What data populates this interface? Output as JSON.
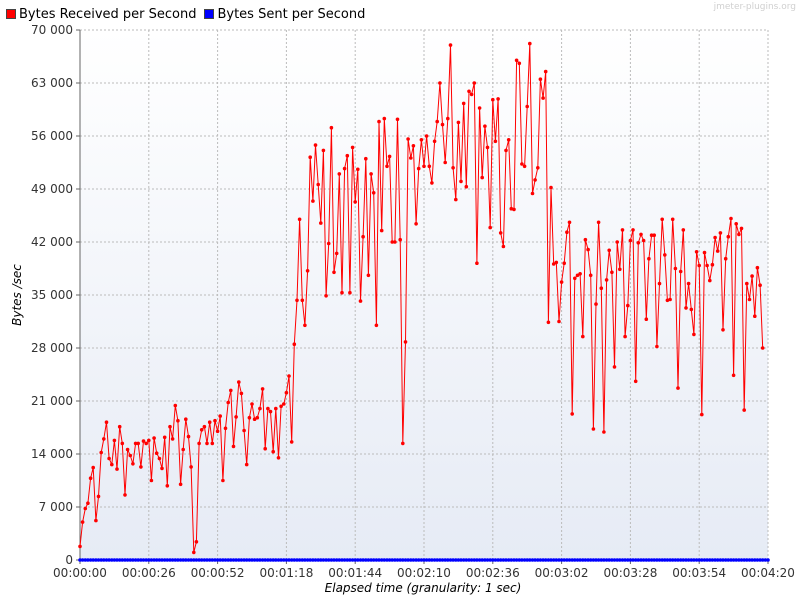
{
  "chart_data": {
    "type": "line",
    "title": "",
    "xlabel": "Elapsed time (granularity: 1 sec)",
    "ylabel": "Bytes /sec",
    "ylim": [
      0,
      70000
    ],
    "xlim": [
      "00:00:00",
      "00:04:20"
    ],
    "x_ticks": [
      "00:00:00",
      "00:00:26",
      "00:00:52",
      "00:01:18",
      "00:01:44",
      "00:02:10",
      "00:02:36",
      "00:03:02",
      "00:03:28",
      "00:03:54",
      "00:04:20"
    ],
    "y_ticks": [
      "0",
      "7 000",
      "14 000",
      "21 000",
      "28 000",
      "35 000",
      "42 000",
      "49 000",
      "56 000",
      "63 000",
      "70 000"
    ],
    "grid": true,
    "legend_position": "top-left",
    "series": [
      {
        "name": "Bytes Received per Second",
        "color": "#ff0000",
        "x_start": "00:00:00",
        "x_step_seconds": 1,
        "values": [
          1800,
          5000,
          6800,
          7500,
          10800,
          12200,
          5200,
          8400,
          14200,
          16000,
          18200,
          13400,
          12600,
          15800,
          12000,
          17600,
          15400,
          8600,
          14600,
          13800,
          12700,
          15400,
          15400,
          12300,
          15700,
          15400,
          15800,
          10500,
          16100,
          14100,
          13400,
          12100,
          16200,
          9800,
          17600,
          16000,
          20400,
          18400,
          10000,
          14600,
          18600,
          16300,
          12300,
          1000,
          2400,
          15400,
          17200,
          17600,
          15400,
          18200,
          15400,
          18400,
          17000,
          19000,
          10500,
          17400,
          20800,
          22400,
          15000,
          18900,
          23500,
          22000,
          17100,
          12600,
          18800,
          20600,
          18600,
          18800,
          20000,
          22600,
          14700,
          20000,
          19600,
          14300,
          20000,
          13500,
          20300,
          20600,
          22100,
          24300,
          15600,
          28500,
          34300,
          45000,
          34300,
          31000,
          38200,
          53200,
          47400,
          54800,
          49600,
          44500,
          54100,
          34900,
          41800,
          57100,
          38000,
          40500,
          51000,
          35300,
          51700,
          53400,
          35300,
          54500,
          47300,
          51600,
          34200,
          42700,
          53000,
          37600,
          51000,
          48500,
          31000,
          57900,
          43500,
          58300,
          52000,
          53300,
          42000,
          42000,
          58200,
          42300,
          15400,
          28800,
          55600,
          53100,
          54700,
          44400,
          51700,
          55500,
          52000,
          56000,
          52000,
          49800,
          55300,
          57900,
          63000,
          57500,
          52500,
          58300,
          68000,
          51800,
          47600,
          57800,
          50000,
          60300,
          49300,
          61900,
          61500,
          63000,
          39200,
          59700,
          50500,
          57300,
          54500,
          43900,
          60800,
          55300,
          60900,
          43200,
          41400,
          54100,
          55500,
          46400,
          46300,
          66000,
          65600,
          52300,
          52000,
          59900,
          68200,
          48400,
          50200,
          51800,
          63500,
          61000,
          64500,
          31400,
          49200,
          39100,
          39300,
          31500,
          36700,
          39200,
          43300,
          44600,
          19300,
          37200,
          37600,
          37800,
          29500,
          42300,
          41000,
          37600,
          17300,
          33800,
          44600,
          35900,
          16900,
          37000,
          40900,
          38000,
          25500,
          42000,
          38400,
          43600,
          29500,
          33600,
          42200,
          43600,
          23600,
          41900,
          43000,
          42200,
          31800,
          39800,
          42900,
          42900,
          28200,
          36500,
          45000,
          40300,
          34300,
          34400,
          45000,
          38500,
          22700,
          38100,
          43600,
          33300,
          36500,
          33100,
          29800,
          40700,
          38900,
          19200,
          40600,
          38900,
          36900,
          39000,
          42600,
          40800,
          43200,
          30400,
          39800,
          42700,
          45100,
          24400,
          44400,
          43000,
          43800,
          19800,
          36500,
          34400,
          37500,
          32200,
          38600,
          36300,
          28000
        ]
      },
      {
        "name": "Bytes Sent per Second",
        "color": "#0000ff",
        "x_start": "00:00:00",
        "x_step_seconds": 1,
        "values": "zero-repeat",
        "constant_value": 0,
        "point_count": 261
      }
    ]
  },
  "watermark": "jmeter-plugins.org"
}
